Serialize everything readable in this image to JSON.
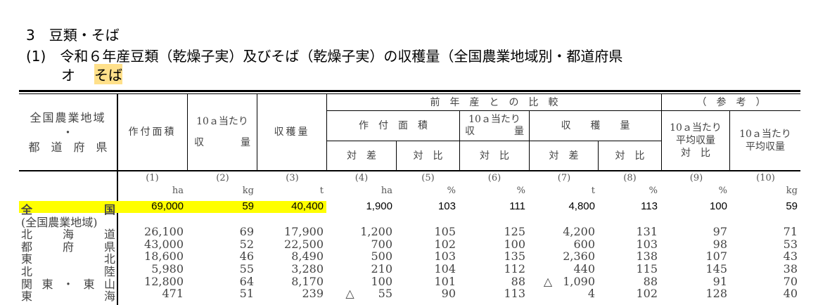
{
  "title": {
    "section": "3　豆類・そば",
    "subsection": "(1)　令和６年産豆類（乾燥子実）及びそば（乾燥子実）の収穫量（全国農業地域別・都道府県",
    "item_prefix": "オ",
    "item": "そば"
  },
  "header": {
    "region_label_top": "全国農業地域",
    "region_label_dot": "・",
    "region_label_bottom": "都　道　府　県",
    "col1": "作付面積",
    "col2_top": "10ａ当たり",
    "col2_bottom_left": "収",
    "col2_bottom_right": "量",
    "col3": "収穫量",
    "comparison_group": "前　年　産　と　の　比　較",
    "reference_group": "（　参　考　）",
    "area_group": "作　付　面　積",
    "yield_group_top": "10ａ当たり",
    "yield_group_left": "収",
    "yield_group_right": "量",
    "harvest_group": "収　　穫　　量",
    "col4": "対　差",
    "col5": "対　比",
    "col6": "対　比",
    "col7": "対　差",
    "col8": "対　比",
    "col9_line1": "10ａ当たり",
    "col9_line2": "平均収量",
    "col9_line3": "対　比",
    "col10_line1": "10ａ当たり",
    "col10_line2": "平均収量"
  },
  "column_numbers": [
    "(1)",
    "(2)",
    "(3)",
    "(4)",
    "(5)",
    "(6)",
    "(7)",
    "(8)",
    "(9)",
    "(10)"
  ],
  "units": [
    "ha",
    "kg",
    "t",
    "ha",
    "%",
    "%",
    "t",
    "%",
    "%",
    "kg"
  ],
  "highlight_color": "#ffff00",
  "rows": [
    {
      "label": [
        "全",
        "国"
      ],
      "total": true,
      "values": [
        "69,000",
        "59",
        "40,400",
        "1,900",
        "103",
        "111",
        "4,800",
        "113",
        "100",
        "59"
      ]
    },
    {
      "label": [
        "(全国農業地域)"
      ],
      "values": []
    },
    {
      "label": [
        "北",
        "海",
        "道"
      ],
      "values": [
        "26,100",
        "69",
        "17,900",
        "1,200",
        "105",
        "125",
        "4,200",
        "131",
        "97",
        "71"
      ]
    },
    {
      "label": [
        "都",
        "府",
        "県"
      ],
      "values": [
        "43,000",
        "52",
        "22,500",
        "700",
        "102",
        "100",
        "600",
        "103",
        "98",
        "53"
      ]
    },
    {
      "label": [
        "東",
        "北"
      ],
      "values": [
        "18,600",
        "46",
        "8,490",
        "500",
        "103",
        "135",
        "2,360",
        "138",
        "107",
        "43"
      ]
    },
    {
      "label": [
        "北",
        "陸"
      ],
      "values": [
        "5,980",
        "55",
        "3,280",
        "210",
        "104",
        "112",
        "440",
        "115",
        "145",
        "38"
      ]
    },
    {
      "label": [
        "関",
        "東",
        "・",
        "東",
        "山"
      ],
      "values": [
        "12,800",
        "64",
        "8,170",
        "100",
        "101",
        "88",
        "△1,090",
        "88",
        "91",
        "70"
      ]
    },
    {
      "label": [
        "東",
        "海"
      ],
      "values": [
        "471",
        "51",
        "239",
        "△55",
        "90",
        "113",
        "4",
        "102",
        "128",
        "40"
      ]
    }
  ]
}
